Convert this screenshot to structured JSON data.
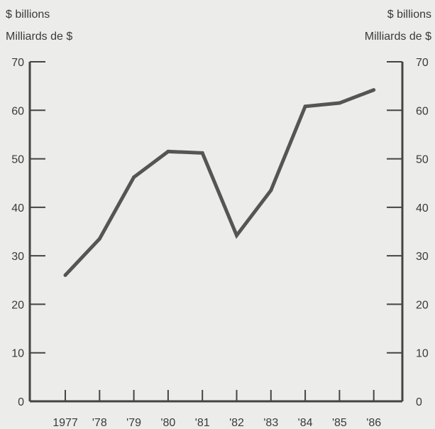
{
  "chart_data": {
    "type": "line",
    "unit_left": [
      "$ billions",
      "Milliards de $"
    ],
    "unit_right": [
      "$ billions",
      "Milliards de $"
    ],
    "categories": [
      "1977",
      "'78",
      "'79",
      "'80",
      "'81",
      "'82",
      "'83",
      "'84",
      "'85",
      "'86"
    ],
    "series": [
      {
        "values": [
          26,
          33.5,
          46.2,
          51.5,
          51.2,
          34.2,
          43.5,
          60.8,
          61.5,
          64.2
        ]
      }
    ],
    "ylim": [
      0,
      70
    ],
    "yticks": [
      0,
      10,
      20,
      30,
      40,
      50,
      60,
      70
    ],
    "grid": false,
    "line_color": "#555555"
  }
}
